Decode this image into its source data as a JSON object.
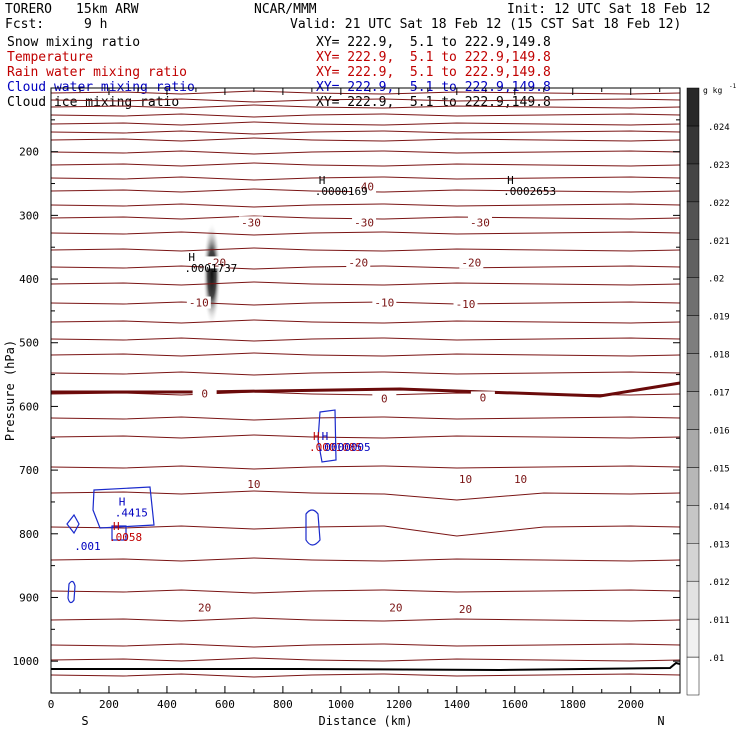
{
  "header": {
    "model": "TORERO",
    "resolution": "15km ARW",
    "center": "NCAR/MMM",
    "init": "Init: 12 UTC Sat 18 Feb 12",
    "fcst_label": "Fcst:",
    "fcst_value": "9 h",
    "valid": "Valid: 21 UTC Sat 18 Feb 12 (15 CST Sat 18 Feb 12)"
  },
  "fields": [
    {
      "name": "Snow mixing ratio",
      "xy": "XY= 222.9,  5.1 to 222.9,149.8",
      "color": "#000000"
    },
    {
      "name": "Temperature",
      "xy": "XY= 222.9,  5.1 to 222.9,149.8",
      "color": "#c00000"
    },
    {
      "name": "Rain water mixing ratio",
      "xy": "XY= 222.9,  5.1 to 222.9,149.8",
      "color": "#c00000"
    },
    {
      "name": "Cloud water mixing ratio",
      "xy": "XY= 222.9,  5.1 to 222.9,149.8",
      "color": "#0000c0"
    },
    {
      "name": "Cloud ice mixing ratio",
      "xy": "XY= 222.9,  5.1 to 222.9,149.8",
      "color": "#000000"
    }
  ],
  "chart_data": {
    "type": "contour",
    "xlabel": "Distance (km)",
    "ylabel": "Pressure (hPa)",
    "xlim": [
      0,
      2170
    ],
    "ylim": [
      1050,
      100
    ],
    "x_ticks": [
      "0",
      "200",
      "400",
      "600",
      "800",
      "1000",
      "1200",
      "1400",
      "1600",
      "1800",
      "2000"
    ],
    "x_tick_values": [
      0,
      200,
      400,
      600,
      800,
      1000,
      1200,
      1400,
      1600,
      1800,
      2000
    ],
    "y_ticks": [
      "200",
      "300",
      "400",
      "500",
      "600",
      "700",
      "800",
      "900",
      "1000"
    ],
    "y_tick_values": [
      200,
      300,
      400,
      500,
      600,
      700,
      800,
      900,
      1000
    ],
    "left_end_label": "S",
    "right_end_label": "N",
    "colorbar": {
      "unit": "g kg",
      "unit_exp": "-1",
      "levels": [
        ".01",
        ".011",
        ".012",
        ".013",
        ".014",
        ".015",
        ".016",
        ".017",
        ".018",
        ".019",
        ".02",
        ".021",
        ".022",
        ".023",
        ".024"
      ],
      "level_values": [
        0.01,
        0.011,
        0.012,
        0.013,
        0.014,
        0.015,
        0.016,
        0.017,
        0.018,
        0.019,
        0.02,
        0.021,
        0.022,
        0.023,
        0.024
      ]
    },
    "temperature_contour_labels": [
      {
        "text": "-40",
        "x": 1080,
        "p": 258
      },
      {
        "text": "-30",
        "x": 690,
        "p": 314
      },
      {
        "text": "-30",
        "x": 1080,
        "p": 314
      },
      {
        "text": "-30",
        "x": 1480,
        "p": 314
      },
      {
        "text": "-20",
        "x": 1060,
        "p": 377
      },
      {
        "text": "-20",
        "x": 1450,
        "p": 377
      },
      {
        "text": "-20",
        "x": 570,
        "p": 377
      },
      {
        "text": "-10",
        "x": 510,
        "p": 440
      },
      {
        "text": "-10",
        "x": 1150,
        "p": 440
      },
      {
        "text": "-10",
        "x": 1430,
        "p": 442
      },
      {
        "text": "0",
        "x": 530,
        "p": 583
      },
      {
        "text": "0",
        "x": 1150,
        "p": 591
      },
      {
        "text": "0",
        "x": 1490,
        "p": 589
      },
      {
        "text": "10",
        "x": 700,
        "p": 725
      },
      {
        "text": "10",
        "x": 1430,
        "p": 717
      },
      {
        "text": "10",
        "x": 1620,
        "p": 717
      },
      {
        "text": "20",
        "x": 530,
        "p": 919
      },
      {
        "text": "20",
        "x": 1190,
        "p": 919
      },
      {
        "text": "20",
        "x": 1430,
        "p": 921
      }
    ],
    "max_markers": [
      {
        "label": "H",
        "value": ".0000169",
        "x": 910,
        "p": 265,
        "color": "#000000"
      },
      {
        "label": "H",
        "value": ".0002653",
        "x": 1560,
        "p": 265,
        "color": "#000000"
      },
      {
        "label": "H",
        "value": ".0001737",
        "x": 460,
        "p": 386,
        "color": "#000000"
      },
      {
        "label": "H",
        "value": ".0001085",
        "x": 890,
        "p": 667,
        "color": "#c00000"
      },
      {
        "label": "H",
        "value": ".0000005",
        "x": 920,
        "p": 667,
        "color": "#0000c0"
      },
      {
        "label": "H",
        "value": ".4415",
        "x": 220,
        "p": 770,
        "color": "#0000c0"
      },
      {
        "label": "H",
        "value": ".0058",
        "x": 200,
        "p": 808,
        "color": "#c00000"
      },
      {
        "label": "",
        "value": ".001",
        "x": 80,
        "p": 822,
        "color": "#0000c0"
      }
    ]
  }
}
